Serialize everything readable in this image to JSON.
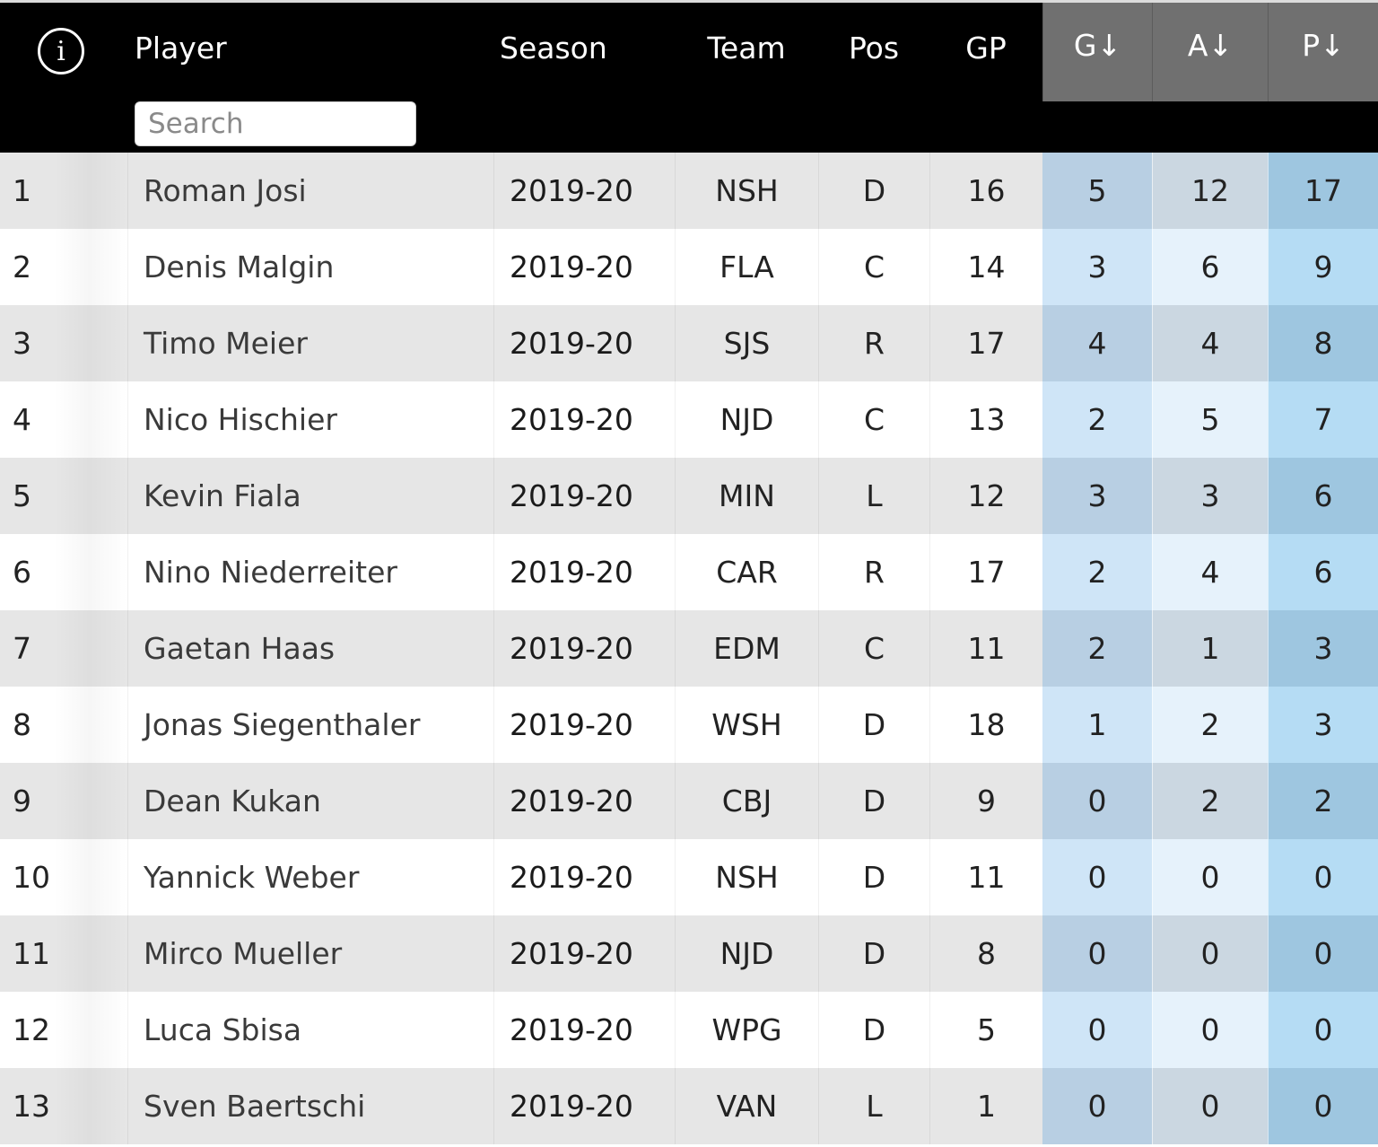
{
  "header": {
    "info_icon": "i",
    "columns": {
      "player": "Player",
      "season": "Season",
      "team": "Team",
      "pos": "Pos",
      "gp": "GP",
      "g": "G↓",
      "a": "A↓",
      "p": "P↓"
    },
    "search_placeholder": "Search"
  },
  "colors": {
    "header_bg": "#000000",
    "sorted_header_bg": "#707070",
    "row_odd": "#e6e6e6",
    "row_even": "#ffffff",
    "goals_col": "#cfe5f7",
    "assists_col": "#e6f2fb",
    "points_col": "#b5dcf4"
  },
  "rows": [
    {
      "rank": "1",
      "player": "Roman Josi",
      "season": "2019-20",
      "team": "NSH",
      "pos": "D",
      "gp": "16",
      "g": "5",
      "a": "12",
      "p": "17"
    },
    {
      "rank": "2",
      "player": "Denis Malgin",
      "season": "2019-20",
      "team": "FLA",
      "pos": "C",
      "gp": "14",
      "g": "3",
      "a": "6",
      "p": "9"
    },
    {
      "rank": "3",
      "player": "Timo Meier",
      "season": "2019-20",
      "team": "SJS",
      "pos": "R",
      "gp": "17",
      "g": "4",
      "a": "4",
      "p": "8"
    },
    {
      "rank": "4",
      "player": "Nico Hischier",
      "season": "2019-20",
      "team": "NJD",
      "pos": "C",
      "gp": "13",
      "g": "2",
      "a": "5",
      "p": "7"
    },
    {
      "rank": "5",
      "player": "Kevin Fiala",
      "season": "2019-20",
      "team": "MIN",
      "pos": "L",
      "gp": "12",
      "g": "3",
      "a": "3",
      "p": "6"
    },
    {
      "rank": "6",
      "player": "Nino Niederreiter",
      "season": "2019-20",
      "team": "CAR",
      "pos": "R",
      "gp": "17",
      "g": "2",
      "a": "4",
      "p": "6"
    },
    {
      "rank": "7",
      "player": "Gaetan Haas",
      "season": "2019-20",
      "team": "EDM",
      "pos": "C",
      "gp": "11",
      "g": "2",
      "a": "1",
      "p": "3"
    },
    {
      "rank": "8",
      "player": "Jonas Siegenthaler",
      "season": "2019-20",
      "team": "WSH",
      "pos": "D",
      "gp": "18",
      "g": "1",
      "a": "2",
      "p": "3"
    },
    {
      "rank": "9",
      "player": "Dean Kukan",
      "season": "2019-20",
      "team": "CBJ",
      "pos": "D",
      "gp": "9",
      "g": "0",
      "a": "2",
      "p": "2"
    },
    {
      "rank": "10",
      "player": "Yannick Weber",
      "season": "2019-20",
      "team": "NSH",
      "pos": "D",
      "gp": "11",
      "g": "0",
      "a": "0",
      "p": "0"
    },
    {
      "rank": "11",
      "player": "Mirco Mueller",
      "season": "2019-20",
      "team": "NJD",
      "pos": "D",
      "gp": "8",
      "g": "0",
      "a": "0",
      "p": "0"
    },
    {
      "rank": "12",
      "player": "Luca Sbisa",
      "season": "2019-20",
      "team": "WPG",
      "pos": "D",
      "gp": "5",
      "g": "0",
      "a": "0",
      "p": "0"
    },
    {
      "rank": "13",
      "player": "Sven Baertschi",
      "season": "2019-20",
      "team": "VAN",
      "pos": "L",
      "gp": "1",
      "g": "0",
      "a": "0",
      "p": "0"
    }
  ]
}
